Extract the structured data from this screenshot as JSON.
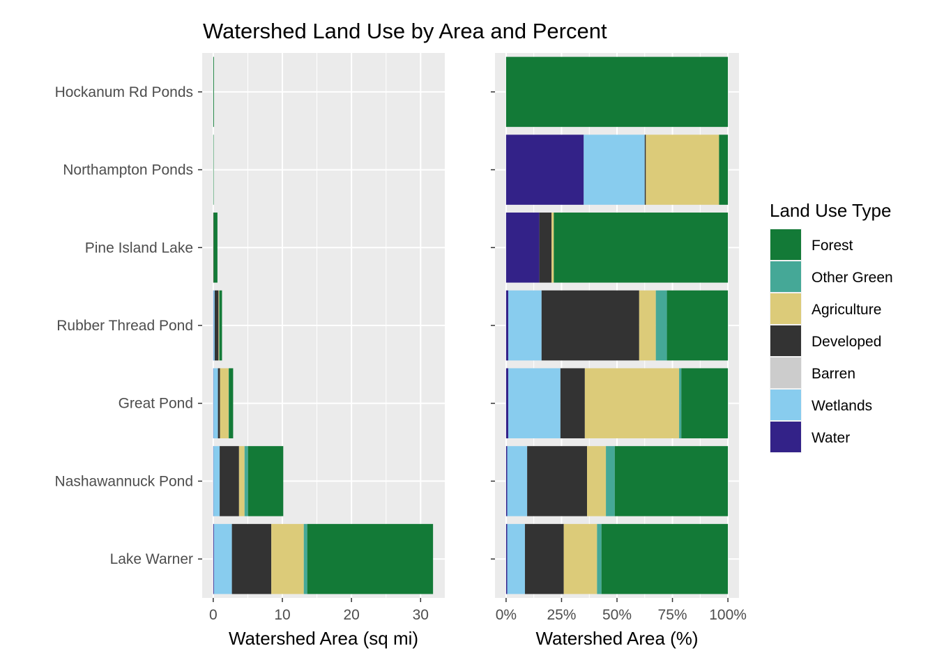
{
  "chart_data": {
    "type": "bar",
    "orientation": "horizontal",
    "stacked": true,
    "title": "Watershed Land Use by Area and Percent",
    "categories": [
      "Hockanum Rd Ponds",
      "Northampton Ponds",
      "Pine Island Lake",
      "Rubber Thread Pond",
      "Great Pond",
      "Nashawannuck Pond",
      "Lake Warner"
    ],
    "stack_order": [
      "Water",
      "Wetlands",
      "Barren",
      "Developed",
      "Agriculture",
      "Other Green",
      "Forest"
    ],
    "colors": {
      "Forest": "#137a37",
      "Other Green": "#45a897",
      "Agriculture": "#dccb79",
      "Developed": "#333333",
      "Barren": "#cccccc",
      "Wetlands": "#88ccee",
      "Water": "#332288"
    },
    "panels": [
      {
        "name": "area",
        "xlabel": "Watershed Area (sq mi)",
        "xlim": [
          -1.6,
          33.5
        ],
        "xticks": [
          0,
          10,
          20,
          30
        ],
        "xtick_labels": [
          "0",
          "10",
          "20",
          "30"
        ],
        "series": [
          {
            "name": "Water",
            "values": [
              0,
              0,
              0,
              0.03,
              0.03,
              0.03,
              0.1
            ]
          },
          {
            "name": "Wetlands",
            "values": [
              0,
              0,
              0,
              0.18,
              0.65,
              0.9,
              2.6
            ]
          },
          {
            "name": "Barren",
            "values": [
              0,
              0,
              0,
              0,
              0,
              0,
              0
            ]
          },
          {
            "name": "Developed",
            "values": [
              0,
              0,
              0.05,
              0.55,
              0.3,
              2.8,
              5.7
            ]
          },
          {
            "name": "Agriculture",
            "values": [
              0,
              0,
              0.01,
              0.1,
              1.25,
              0.8,
              4.7
            ]
          },
          {
            "name": "Other Green",
            "values": [
              0,
              0,
              0,
              0.06,
              0.05,
              0.5,
              0.5
            ]
          },
          {
            "name": "Forest",
            "values": [
              0.1,
              0.05,
              0.55,
              0.35,
              0.6,
              5.1,
              18.2
            ]
          }
        ]
      },
      {
        "name": "percent",
        "xlabel": "Watershed Area (%)",
        "xlim": [
          -0.05,
          1.05
        ],
        "xticks": [
          0,
          0.25,
          0.5,
          0.75,
          1
        ],
        "xtick_labels": [
          "0%",
          "25%",
          "50%",
          "75%",
          "100%"
        ],
        "series": [
          {
            "name": "Water",
            "values": [
              0,
              0.35,
              0.15,
              0.01,
              0.01,
              0.005,
              0.005
            ]
          },
          {
            "name": "Wetlands",
            "values": [
              0,
              0.275,
              0,
              0.15,
              0.235,
              0.09,
              0.08
            ]
          },
          {
            "name": "Barren",
            "values": [
              0,
              0,
              0,
              0,
              0,
              0,
              0
            ]
          },
          {
            "name": "Developed",
            "values": [
              0,
              0.005,
              0.055,
              0.44,
              0.11,
              0.27,
              0.175
            ]
          },
          {
            "name": "Agriculture",
            "values": [
              0,
              0.33,
              0.01,
              0.075,
              0.425,
              0.085,
              0.15
            ]
          },
          {
            "name": "Other Green",
            "values": [
              0,
              0,
              0,
              0.05,
              0.01,
              0.04,
              0.02
            ]
          },
          {
            "name": "Forest",
            "values": [
              1.0,
              0.04,
              0.785,
              0.275,
              0.21,
              0.51,
              0.57
            ]
          }
        ]
      }
    ],
    "legend": {
      "title": "Land Use Type",
      "position": "right",
      "items": [
        "Forest",
        "Other Green",
        "Agriculture",
        "Developed",
        "Barren",
        "Wetlands",
        "Water"
      ]
    },
    "grid": true
  }
}
